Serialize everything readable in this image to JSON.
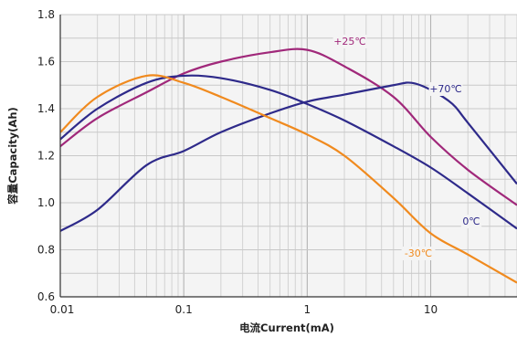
{
  "chart_data": {
    "type": "line",
    "title": "",
    "xlabel": "电流Current(mA)",
    "ylabel": "容量Capacity(Ah)",
    "xscale": "log",
    "xlim": [
      0.01,
      50
    ],
    "ylim": [
      0.6,
      1.8
    ],
    "grid": true,
    "xticks": [
      {
        "value": 0.01,
        "label": "0.01"
      },
      {
        "value": 0.1,
        "label": "0.1"
      },
      {
        "value": 1,
        "label": "1"
      },
      {
        "value": 10,
        "label": "10"
      }
    ],
    "yticks": [
      {
        "value": 0.6,
        "label": "0.6"
      },
      {
        "value": 0.8,
        "label": "0.8"
      },
      {
        "value": 1.0,
        "label": "1.0"
      },
      {
        "value": 1.2,
        "label": "1.2"
      },
      {
        "value": 1.4,
        "label": "1.4"
      },
      {
        "value": 1.6,
        "label": "1.6"
      },
      {
        "value": 1.8,
        "label": "1.8"
      }
    ],
    "series": [
      {
        "name": "+25℃",
        "color": "#a0287a",
        "points": [
          [
            0.01,
            1.24
          ],
          [
            0.02,
            1.36
          ],
          [
            0.05,
            1.47
          ],
          [
            0.1,
            1.55
          ],
          [
            0.2,
            1.6
          ],
          [
            0.5,
            1.64
          ],
          [
            1,
            1.65
          ],
          [
            2,
            1.58
          ],
          [
            5,
            1.45
          ],
          [
            10,
            1.28
          ],
          [
            20,
            1.14
          ],
          [
            50,
            0.99
          ]
        ]
      },
      {
        "name": "+70℃",
        "color": "#2e2a8a",
        "points": [
          [
            0.01,
            0.88
          ],
          [
            0.02,
            0.97
          ],
          [
            0.05,
            1.16
          ],
          [
            0.1,
            1.22
          ],
          [
            0.2,
            1.3
          ],
          [
            0.5,
            1.38
          ],
          [
            1,
            1.43
          ],
          [
            2,
            1.46
          ],
          [
            5,
            1.5
          ],
          [
            7,
            1.51
          ],
          [
            10,
            1.48
          ],
          [
            15,
            1.42
          ],
          [
            20,
            1.34
          ],
          [
            50,
            1.08
          ]
        ]
      },
      {
        "name": "0℃",
        "color": "#2e2a8a",
        "points": [
          [
            0.01,
            1.27
          ],
          [
            0.02,
            1.4
          ],
          [
            0.05,
            1.51
          ],
          [
            0.1,
            1.54
          ],
          [
            0.2,
            1.53
          ],
          [
            0.5,
            1.48
          ],
          [
            1,
            1.42
          ],
          [
            2,
            1.35
          ],
          [
            5,
            1.24
          ],
          [
            10,
            1.15
          ],
          [
            20,
            1.04
          ],
          [
            50,
            0.89
          ]
        ]
      },
      {
        "name": "-30℃",
        "color": "#f08a1e",
        "points": [
          [
            0.01,
            1.3
          ],
          [
            0.02,
            1.45
          ],
          [
            0.05,
            1.54
          ],
          [
            0.1,
            1.51
          ],
          [
            0.2,
            1.45
          ],
          [
            0.5,
            1.36
          ],
          [
            1,
            1.29
          ],
          [
            2,
            1.2
          ],
          [
            5,
            1.02
          ],
          [
            10,
            0.87
          ],
          [
            20,
            0.78
          ],
          [
            50,
            0.66
          ]
        ]
      }
    ]
  }
}
